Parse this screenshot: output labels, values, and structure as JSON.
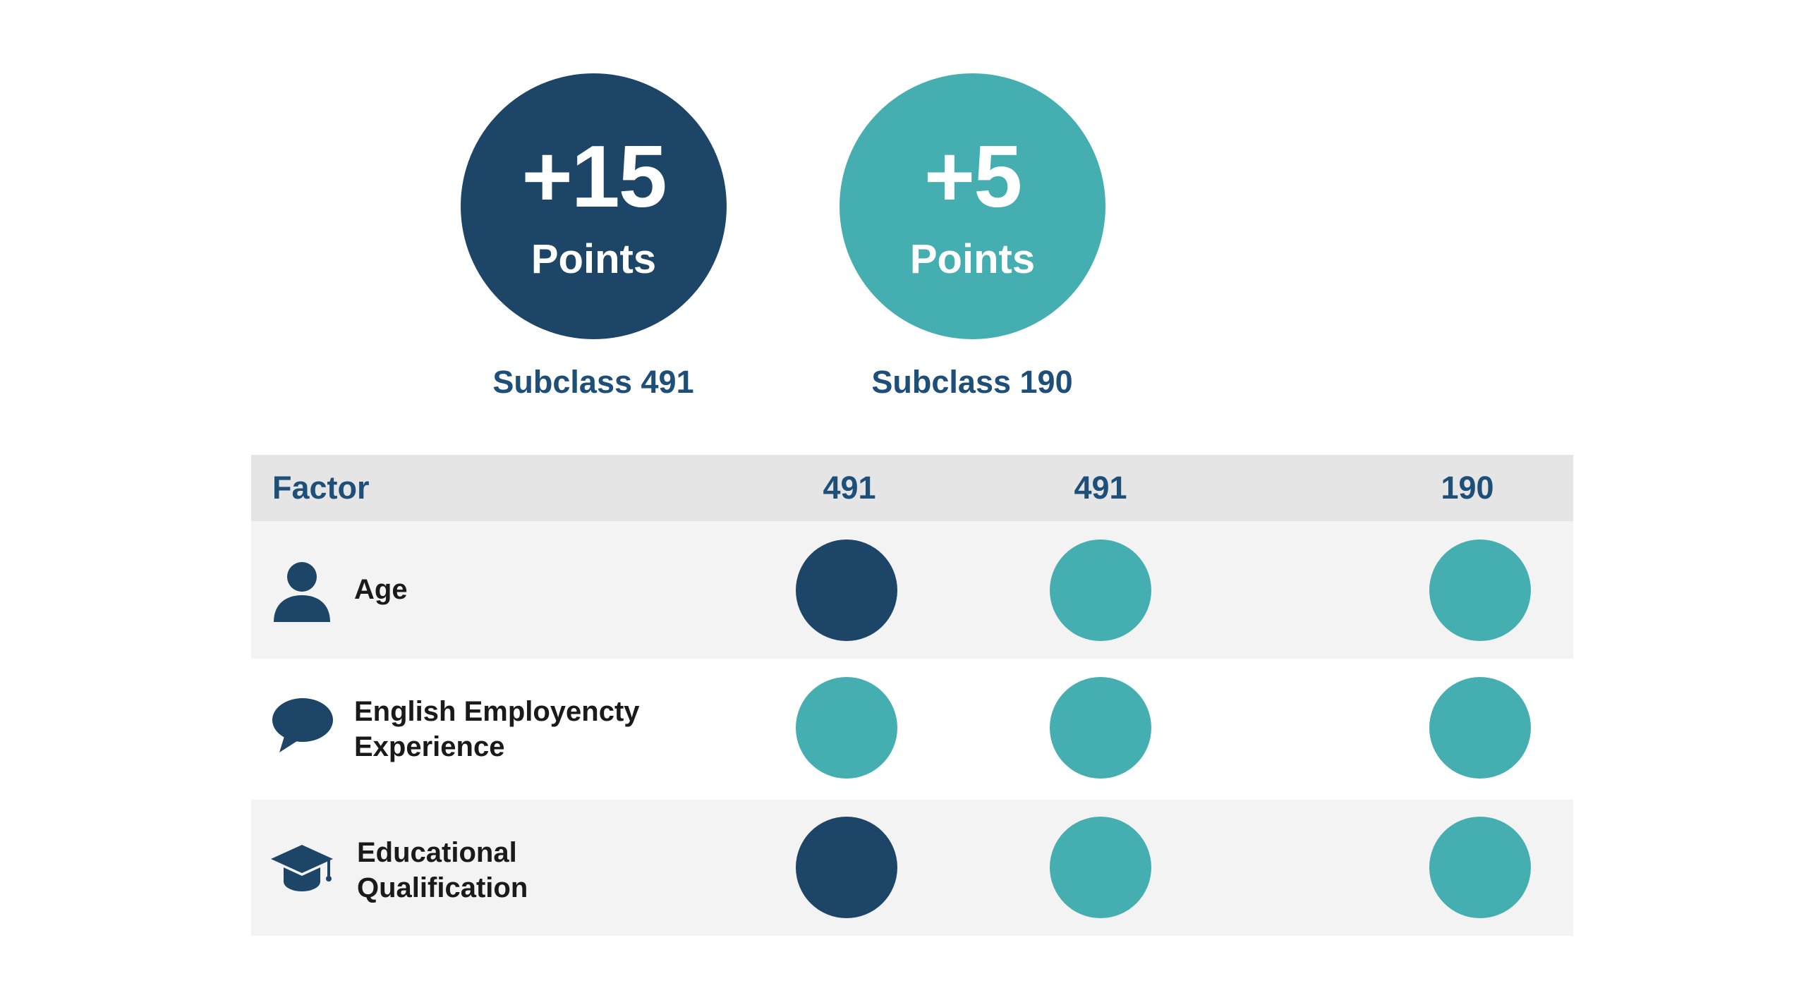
{
  "badges": [
    {
      "value": "+15",
      "unit": "Points",
      "caption": "Subclass 491",
      "color": "#1d4567"
    },
    {
      "value": "+5",
      "unit": "Points",
      "caption": "Subclass 190",
      "color": "#45aeb1"
    }
  ],
  "table": {
    "headers": {
      "factor": "Factor",
      "col1": "491",
      "col2": "491",
      "col3": "190"
    },
    "rows": [
      {
        "label": "Age",
        "icon": "person-icon",
        "dots": [
          "dark",
          "teal",
          "teal"
        ]
      },
      {
        "label_line1": "English Employencty",
        "label_line2": "Experience",
        "icon": "speech-bubble-icon",
        "dots": [
          "teal",
          "teal",
          "teal"
        ]
      },
      {
        "label_line1": "Educational",
        "label_line2": "Qualification",
        "icon": "graduation-cap-icon",
        "dots": [
          "dark",
          "teal",
          "teal"
        ]
      }
    ]
  },
  "colors": {
    "dark": "#1d4567",
    "teal": "#45aeb1",
    "heading": "#1e4f78"
  }
}
